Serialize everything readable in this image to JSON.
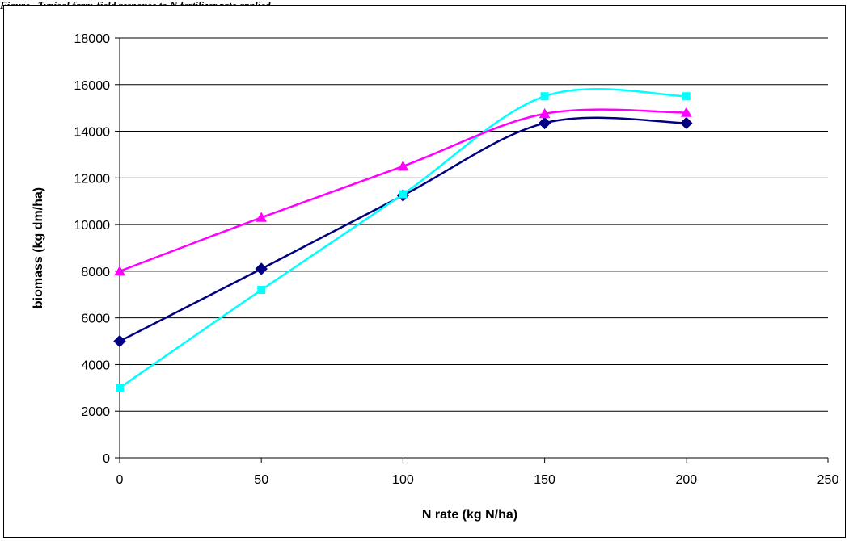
{
  "figure": {
    "caption": "Figure . Typical farm-field response to N fertilizer rate applied"
  },
  "chart_data": {
    "type": "line",
    "title": "",
    "xlabel": "N rate (kg N/ha)",
    "ylabel": "biomass (kg dm/ha)",
    "xlim": [
      0,
      250
    ],
    "ylim": [
      0,
      18000
    ],
    "xticks": [
      0,
      50,
      100,
      150,
      200,
      250
    ],
    "yticks": [
      0,
      2000,
      4000,
      6000,
      8000,
      10000,
      12000,
      14000,
      16000,
      18000
    ],
    "grid": "horizontal",
    "legend": "none",
    "series": [
      {
        "color": "#000080",
        "marker": "diamond",
        "x": [
          0,
          50,
          100,
          150,
          200
        ],
        "y": [
          5000,
          8100,
          11250,
          14350,
          14350
        ]
      },
      {
        "color": "#00FFFF",
        "marker": "square",
        "x": [
          0,
          50,
          100,
          150,
          200
        ],
        "y": [
          3000,
          7200,
          11300,
          15500,
          15500
        ]
      },
      {
        "color": "#FF00FF",
        "marker": "triangle",
        "x": [
          0,
          50,
          100,
          150,
          200
        ],
        "y": [
          8000,
          10300,
          12500,
          14750,
          14800
        ]
      }
    ]
  }
}
